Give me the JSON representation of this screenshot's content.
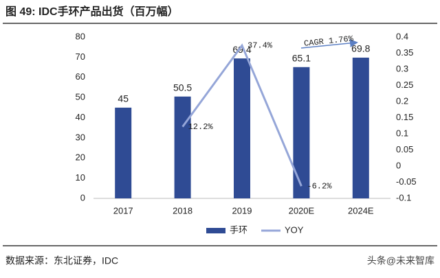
{
  "chart_data": {
    "type": "bar",
    "title": "图 49: IDC手环产品出货（百万幅）",
    "categories": [
      "2017",
      "2018",
      "2019",
      "2020E",
      "2024E"
    ],
    "series": [
      {
        "name": "手环",
        "type": "bar",
        "color": "#2f4b94",
        "values": [
          45,
          50.5,
          69.4,
          65.1,
          69.8
        ]
      },
      {
        "name": "YOY",
        "type": "line",
        "axis": "y2",
        "color": "#95a6d8",
        "values": [
          null,
          0.122,
          0.374,
          -0.062,
          null
        ],
        "value_labels": [
          null,
          "12.2%",
          "37.4%",
          "-6.2%",
          null
        ]
      }
    ],
    "ylim": [
      0,
      80
    ],
    "yticks": [
      0,
      10,
      20,
      30,
      40,
      50,
      60,
      70,
      80
    ],
    "y2lim": [
      -0.1,
      0.4
    ],
    "y2ticks": [
      -0.1,
      -0.05,
      0,
      0.05,
      0.1,
      0.15,
      0.2,
      0.25,
      0.3,
      0.35,
      0.4
    ],
    "annotation": "CAGR 1.76%",
    "source": "数据来源：东北证券，IDC",
    "watermark": "头条@未来智库",
    "grid": false
  }
}
